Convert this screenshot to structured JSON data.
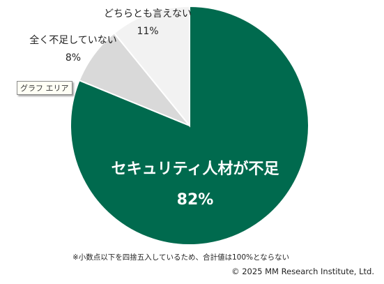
{
  "chart_data": {
    "type": "pie",
    "slices": [
      {
        "name": "セキュリティ人材が不足",
        "value": 82,
        "label": "82%",
        "color": "#006a4e"
      },
      {
        "name": "全く不足していない",
        "value": 8,
        "label": "8%",
        "color": "#d9d9d9"
      },
      {
        "name": "どちらとも言えない",
        "value": 11,
        "label": "11%",
        "color": "#f2f2f2"
      }
    ]
  },
  "tooltip": "グラフ エリア",
  "footnote": "※小数点以下を四捨五入しているため、合計値は100%とならない",
  "copyright": "© 2025 MM Research Institute, Ltd."
}
